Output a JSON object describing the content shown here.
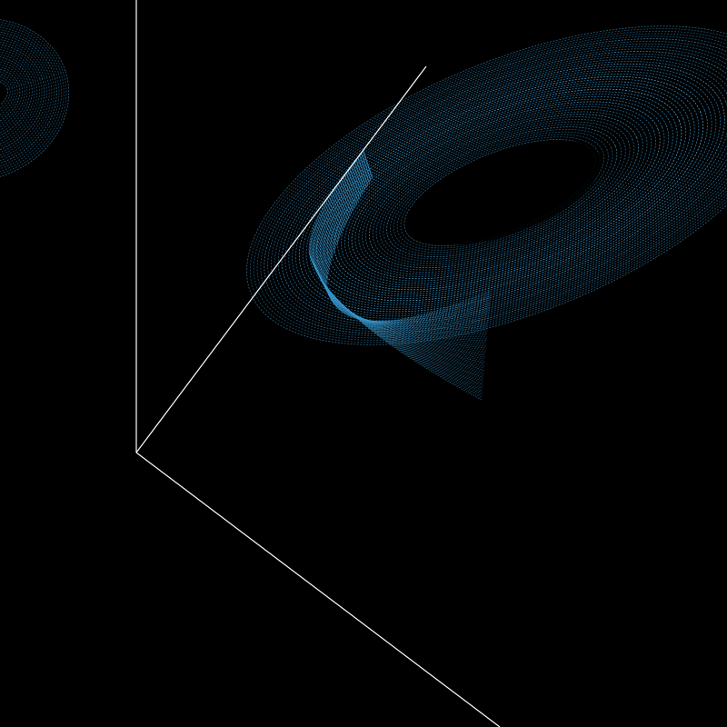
{
  "scene": {
    "background_color": "#000000",
    "axis_color": "#ffffff",
    "attractor_color": "#2e8fc8",
    "attractor_highlight_color": "#5ab8ea",
    "elements": [
      "x-axis",
      "y-axis",
      "z-axis",
      "attractor-point-cloud"
    ]
  }
}
